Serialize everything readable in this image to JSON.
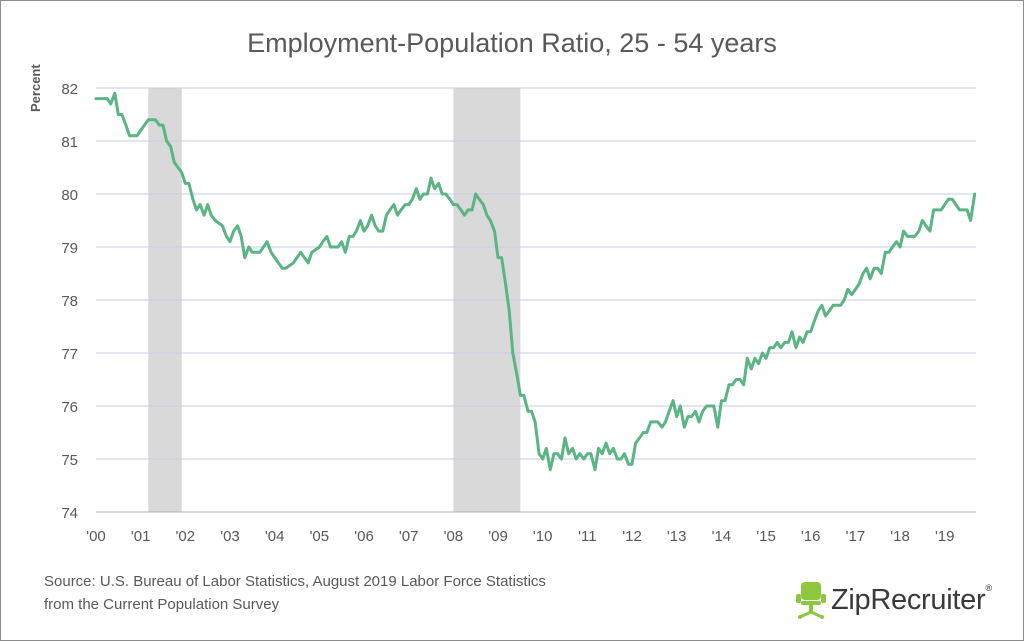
{
  "chart_data": {
    "type": "line",
    "title": "Employment-Population Ratio, 25 - 54 years",
    "ylabel": "Percent",
    "xlabel": "",
    "ylim": [
      74,
      82
    ],
    "yticks": [
      "74",
      "75",
      "76",
      "77",
      "78",
      "79",
      "80",
      "81",
      "82"
    ],
    "xticks": [
      "'00",
      "'01",
      "'02",
      "'03",
      "'04",
      "'05",
      "'06",
      "'07",
      "'08",
      "'09",
      "'10",
      "'11",
      "'12",
      "'13",
      "'14",
      "'15",
      "'16",
      "'17",
      "'18",
      "'19"
    ],
    "xlim": [
      2000.0,
      2019.7
    ],
    "grid": true,
    "line_color": "#5ab483",
    "recession_color": "#d9d9d9",
    "recessions": [
      [
        2001.17,
        2001.92
      ],
      [
        2008.0,
        2009.5
      ]
    ],
    "series": [
      {
        "values": [
          [
            2000.0,
            81.8
          ],
          [
            2000.25,
            81.8
          ],
          [
            2000.33,
            81.7
          ],
          [
            2000.42,
            81.9
          ],
          [
            2000.5,
            81.5
          ],
          [
            2000.58,
            81.5
          ],
          [
            2000.67,
            81.3
          ],
          [
            2000.75,
            81.1
          ],
          [
            2000.92,
            81.1
          ],
          [
            2001.0,
            81.2
          ],
          [
            2001.17,
            81.4
          ],
          [
            2001.33,
            81.4
          ],
          [
            2001.42,
            81.3
          ],
          [
            2001.5,
            81.3
          ],
          [
            2001.58,
            81.0
          ],
          [
            2001.67,
            80.9
          ],
          [
            2001.75,
            80.6
          ],
          [
            2001.92,
            80.4
          ],
          [
            2002.0,
            80.2
          ],
          [
            2002.08,
            80.2
          ],
          [
            2002.17,
            79.9
          ],
          [
            2002.25,
            79.7
          ],
          [
            2002.33,
            79.8
          ],
          [
            2002.42,
            79.6
          ],
          [
            2002.5,
            79.8
          ],
          [
            2002.58,
            79.6
          ],
          [
            2002.67,
            79.5
          ],
          [
            2002.83,
            79.4
          ],
          [
            2002.92,
            79.2
          ],
          [
            2003.0,
            79.1
          ],
          [
            2003.08,
            79.3
          ],
          [
            2003.17,
            79.4
          ],
          [
            2003.25,
            79.2
          ],
          [
            2003.33,
            78.8
          ],
          [
            2003.42,
            79.0
          ],
          [
            2003.5,
            78.9
          ],
          [
            2003.67,
            78.9
          ],
          [
            2003.75,
            79.0
          ],
          [
            2003.83,
            79.1
          ],
          [
            2003.92,
            78.9
          ],
          [
            2004.0,
            78.8
          ],
          [
            2004.17,
            78.6
          ],
          [
            2004.25,
            78.6
          ],
          [
            2004.42,
            78.7
          ],
          [
            2004.58,
            78.9
          ],
          [
            2004.75,
            78.7
          ],
          [
            2004.83,
            78.9
          ],
          [
            2005.0,
            79.0
          ],
          [
            2005.08,
            79.1
          ],
          [
            2005.17,
            79.2
          ],
          [
            2005.25,
            79.0
          ],
          [
            2005.33,
            79.0
          ],
          [
            2005.42,
            79.0
          ],
          [
            2005.5,
            79.1
          ],
          [
            2005.58,
            78.9
          ],
          [
            2005.67,
            79.2
          ],
          [
            2005.75,
            79.2
          ],
          [
            2005.83,
            79.3
          ],
          [
            2005.92,
            79.5
          ],
          [
            2006.0,
            79.3
          ],
          [
            2006.08,
            79.4
          ],
          [
            2006.17,
            79.6
          ],
          [
            2006.25,
            79.4
          ],
          [
            2006.33,
            79.3
          ],
          [
            2006.42,
            79.3
          ],
          [
            2006.5,
            79.6
          ],
          [
            2006.58,
            79.7
          ],
          [
            2006.67,
            79.8
          ],
          [
            2006.75,
            79.6
          ],
          [
            2006.83,
            79.7
          ],
          [
            2006.92,
            79.8
          ],
          [
            2007.0,
            79.8
          ],
          [
            2007.08,
            79.9
          ],
          [
            2007.17,
            80.1
          ],
          [
            2007.25,
            79.9
          ],
          [
            2007.33,
            80.0
          ],
          [
            2007.42,
            80.0
          ],
          [
            2007.5,
            80.3
          ],
          [
            2007.58,
            80.1
          ],
          [
            2007.67,
            80.2
          ],
          [
            2007.75,
            80.0
          ],
          [
            2007.83,
            80.0
          ],
          [
            2007.92,
            79.9
          ],
          [
            2008.0,
            79.8
          ],
          [
            2008.08,
            79.8
          ],
          [
            2008.17,
            79.7
          ],
          [
            2008.25,
            79.6
          ],
          [
            2008.33,
            79.7
          ],
          [
            2008.42,
            79.7
          ],
          [
            2008.5,
            80.0
          ],
          [
            2008.58,
            79.9
          ],
          [
            2008.67,
            79.8
          ],
          [
            2008.75,
            79.6
          ],
          [
            2008.83,
            79.5
          ],
          [
            2008.92,
            79.3
          ],
          [
            2009.0,
            78.8
          ],
          [
            2009.08,
            78.8
          ],
          [
            2009.17,
            78.3
          ],
          [
            2009.25,
            77.8
          ],
          [
            2009.33,
            77.0
          ],
          [
            2009.42,
            76.6
          ],
          [
            2009.5,
            76.2
          ],
          [
            2009.58,
            76.2
          ],
          [
            2009.67,
            75.9
          ],
          [
            2009.75,
            75.9
          ],
          [
            2009.83,
            75.7
          ],
          [
            2009.92,
            75.1
          ],
          [
            2010.0,
            75.0
          ],
          [
            2010.08,
            75.2
          ],
          [
            2010.17,
            74.8
          ],
          [
            2010.25,
            75.1
          ],
          [
            2010.33,
            75.1
          ],
          [
            2010.42,
            75.0
          ],
          [
            2010.5,
            75.4
          ],
          [
            2010.58,
            75.1
          ],
          [
            2010.67,
            75.2
          ],
          [
            2010.75,
            75.0
          ],
          [
            2010.83,
            75.1
          ],
          [
            2010.92,
            75.0
          ],
          [
            2011.0,
            75.1
          ],
          [
            2011.08,
            75.1
          ],
          [
            2011.17,
            74.8
          ],
          [
            2011.25,
            75.2
          ],
          [
            2011.33,
            75.1
          ],
          [
            2011.42,
            75.3
          ],
          [
            2011.5,
            75.1
          ],
          [
            2011.58,
            75.2
          ],
          [
            2011.67,
            75.0
          ],
          [
            2011.75,
            75.0
          ],
          [
            2011.83,
            75.1
          ],
          [
            2011.92,
            74.9
          ],
          [
            2012.0,
            74.9
          ],
          [
            2012.08,
            75.3
          ],
          [
            2012.17,
            75.4
          ],
          [
            2012.25,
            75.5
          ],
          [
            2012.33,
            75.5
          ],
          [
            2012.42,
            75.7
          ],
          [
            2012.5,
            75.7
          ],
          [
            2012.58,
            75.7
          ],
          [
            2012.67,
            75.6
          ],
          [
            2012.75,
            75.7
          ],
          [
            2012.83,
            75.9
          ],
          [
            2012.92,
            76.1
          ],
          [
            2013.0,
            75.8
          ],
          [
            2013.08,
            76.0
          ],
          [
            2013.17,
            75.6
          ],
          [
            2013.25,
            75.8
          ],
          [
            2013.33,
            75.8
          ],
          [
            2013.42,
            75.9
          ],
          [
            2013.5,
            75.7
          ],
          [
            2013.58,
            75.9
          ],
          [
            2013.67,
            76.0
          ],
          [
            2013.75,
            76.0
          ],
          [
            2013.83,
            76.0
          ],
          [
            2013.92,
            75.6
          ],
          [
            2014.0,
            76.1
          ],
          [
            2014.08,
            76.1
          ],
          [
            2014.17,
            76.4
          ],
          [
            2014.25,
            76.4
          ],
          [
            2014.33,
            76.5
          ],
          [
            2014.42,
            76.5
          ],
          [
            2014.5,
            76.4
          ],
          [
            2014.58,
            76.9
          ],
          [
            2014.67,
            76.7
          ],
          [
            2014.75,
            76.9
          ],
          [
            2014.83,
            76.8
          ],
          [
            2014.92,
            77.0
          ],
          [
            2015.0,
            76.9
          ],
          [
            2015.08,
            77.1
          ],
          [
            2015.17,
            77.1
          ],
          [
            2015.25,
            77.2
          ],
          [
            2015.33,
            77.1
          ],
          [
            2015.42,
            77.2
          ],
          [
            2015.5,
            77.2
          ],
          [
            2015.58,
            77.4
          ],
          [
            2015.67,
            77.1
          ],
          [
            2015.75,
            77.3
          ],
          [
            2015.83,
            77.2
          ],
          [
            2015.92,
            77.4
          ],
          [
            2016.0,
            77.4
          ],
          [
            2016.08,
            77.6
          ],
          [
            2016.17,
            77.8
          ],
          [
            2016.25,
            77.9
          ],
          [
            2016.33,
            77.7
          ],
          [
            2016.42,
            77.8
          ],
          [
            2016.5,
            77.9
          ],
          [
            2016.58,
            77.9
          ],
          [
            2016.67,
            77.9
          ],
          [
            2016.75,
            78.0
          ],
          [
            2016.83,
            78.2
          ],
          [
            2016.92,
            78.1
          ],
          [
            2017.0,
            78.2
          ],
          [
            2017.08,
            78.3
          ],
          [
            2017.17,
            78.5
          ],
          [
            2017.25,
            78.6
          ],
          [
            2017.33,
            78.4
          ],
          [
            2017.42,
            78.6
          ],
          [
            2017.5,
            78.6
          ],
          [
            2017.58,
            78.5
          ],
          [
            2017.67,
            78.9
          ],
          [
            2017.75,
            78.9
          ],
          [
            2017.83,
            79.0
          ],
          [
            2017.92,
            79.1
          ],
          [
            2018.0,
            79.0
          ],
          [
            2018.08,
            79.3
          ],
          [
            2018.17,
            79.2
          ],
          [
            2018.25,
            79.2
          ],
          [
            2018.33,
            79.2
          ],
          [
            2018.42,
            79.3
          ],
          [
            2018.5,
            79.5
          ],
          [
            2018.58,
            79.4
          ],
          [
            2018.67,
            79.3
          ],
          [
            2018.75,
            79.7
          ],
          [
            2018.83,
            79.7
          ],
          [
            2018.92,
            79.7
          ],
          [
            2019.0,
            79.8
          ],
          [
            2019.08,
            79.9
          ],
          [
            2019.17,
            79.9
          ],
          [
            2019.25,
            79.8
          ],
          [
            2019.33,
            79.7
          ],
          [
            2019.42,
            79.7
          ],
          [
            2019.5,
            79.7
          ],
          [
            2019.58,
            79.5
          ],
          [
            2019.67,
            80.0
          ]
        ]
      }
    ]
  },
  "source": {
    "line1": "Source: U.S. Bureau of Labor Statistics, August 2019 Labor Force Statistics",
    "line2": "from the Current Population Survey"
  },
  "logo": {
    "text": "ZipRecruiter",
    "icon": "chair-icon",
    "color": "#8dc63f"
  }
}
